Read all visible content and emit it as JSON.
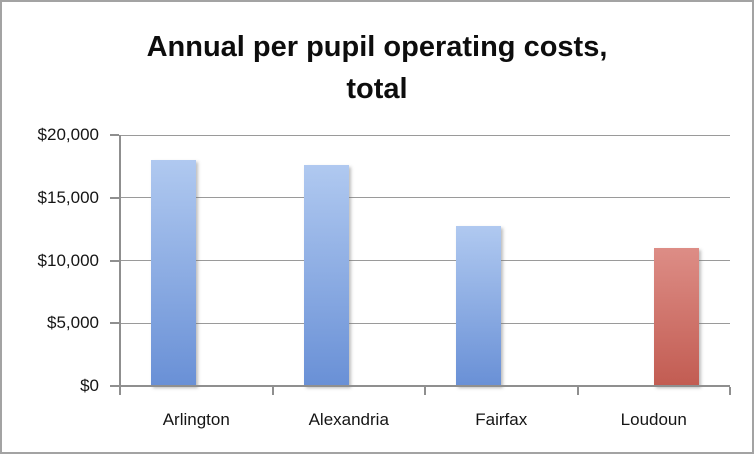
{
  "window": {
    "background_color": "#ffffff",
    "border_color": "#a3a3a3"
  },
  "chart_data": {
    "type": "bar",
    "title": "Annual per pupil operating costs, total",
    "title_lines": [
      "Annual per pupil operating costs,",
      "total"
    ],
    "xlabel": "",
    "ylabel": "",
    "categories": [
      "Arlington",
      "Alexandria",
      "Fairfax",
      "Loudoun"
    ],
    "series": [
      {
        "name": "blue-series",
        "color_top": "#b0c9f0",
        "color_bottom": "#6990d6",
        "values": [
          18000,
          17600,
          12750,
          null
        ]
      },
      {
        "name": "red-series",
        "color_top": "#dd8d86",
        "color_bottom": "#c25c52",
        "values": [
          null,
          null,
          null,
          11000
        ]
      }
    ],
    "ylim": [
      0,
      20000
    ],
    "ytick_interval": 5000,
    "yticks": [
      {
        "value": 0,
        "label": "$0"
      },
      {
        "value": 5000,
        "label": "$5,000"
      },
      {
        "value": 10000,
        "label": "$10,000"
      },
      {
        "value": 15000,
        "label": "$15,000"
      },
      {
        "value": 20000,
        "label": "$20,000"
      }
    ],
    "grid": true,
    "legend": "none",
    "axis_color": "#8f8f8f",
    "gridline_color": "#9a9a9a",
    "text_color": "#0d0d0d"
  }
}
